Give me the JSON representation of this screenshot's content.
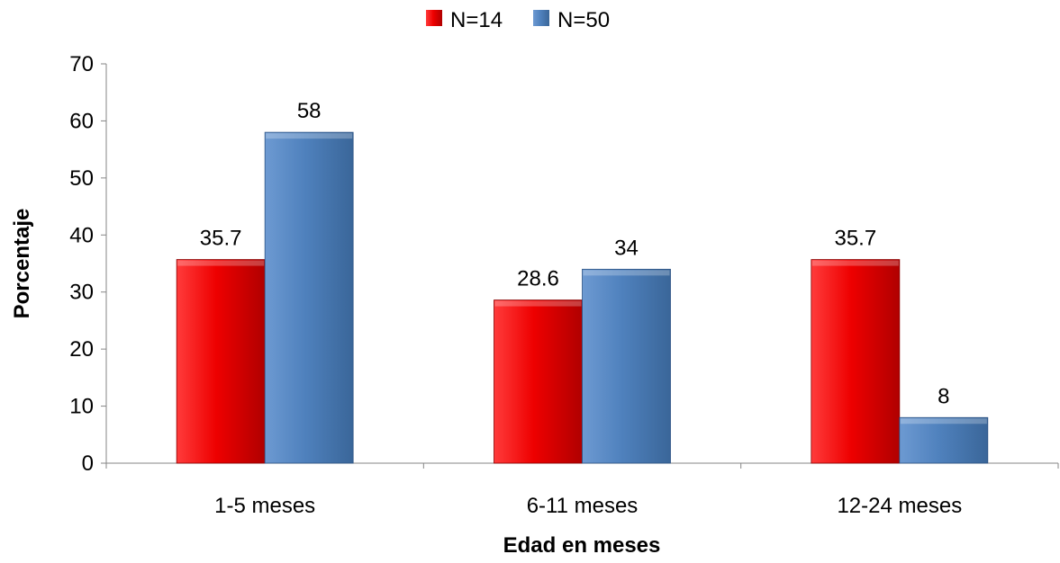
{
  "chart_data": {
    "type": "bar",
    "categories": [
      "1-5 meses",
      "6-11 meses",
      "12-24 meses"
    ],
    "series": [
      {
        "name": "N=14",
        "values": [
          35.7,
          28.6,
          35.7
        ],
        "color": "#ff0000",
        "labels": [
          "35.7",
          "28.6",
          "35.7"
        ]
      },
      {
        "name": "N=50",
        "values": [
          58,
          34,
          8
        ],
        "color": "#4f81bd",
        "labels": [
          "58",
          "34",
          "8"
        ]
      }
    ],
    "title": "",
    "xlabel": "Edad en meses",
    "ylabel": "Porcentaje",
    "ylim": [
      0,
      70
    ],
    "yticks": [
      0,
      10,
      20,
      30,
      40,
      50,
      60,
      70
    ],
    "grid": false,
    "legend_position": "top-center"
  }
}
